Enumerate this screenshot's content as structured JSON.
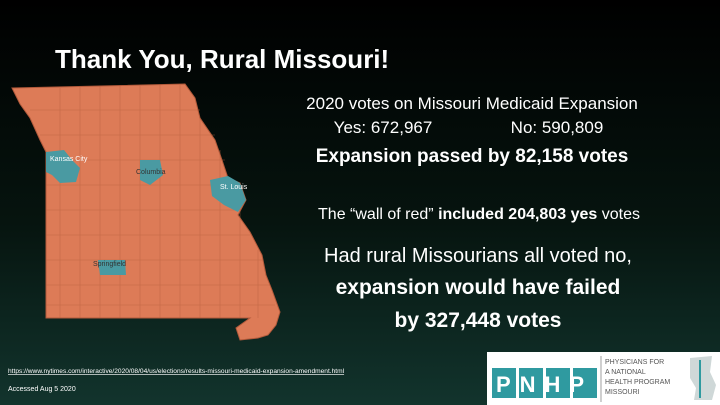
{
  "title": "Thank You, Rural Missouri!",
  "map": {
    "cities": [
      "Kansas City",
      "Columbia",
      "St. Louis",
      "Springfield"
    ]
  },
  "summary": {
    "heading": "2020 votes on Missouri Medicaid Expansion",
    "yes": "Yes: 672,967",
    "no": "No: 590,809",
    "result": "Expansion passed by 82,158 votes"
  },
  "wall": {
    "before": "The “wall of red”",
    "bold": "included 204,803 yes",
    "after": "votes"
  },
  "counterfactual": {
    "line1": "Had rural Missourians all voted no,",
    "line2": "expansion would have failed",
    "line3": "by 327,448 votes"
  },
  "source": {
    "url": "https://www.nytimes.com/interactive/2020/08/04/us/elections/results-missouri-medicaid-expansion-amendment.html",
    "accessed": "Accessed Aug 5 2020"
  },
  "logo": {
    "mark": "PNHP",
    "lines": [
      "PHYSICIANS FOR",
      "A NATIONAL",
      "HEALTH PROGRAM",
      "MISSOURI"
    ]
  }
}
